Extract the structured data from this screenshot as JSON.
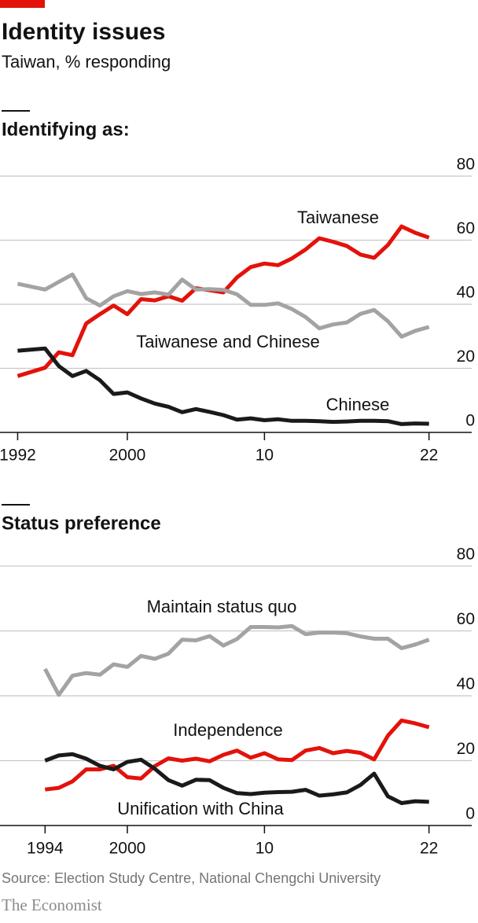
{
  "header": {
    "title": "Identity issues",
    "subtitle": "Taiwan, % responding"
  },
  "footer": {
    "source": "Source: Election Study Centre, National Chengchi University",
    "brand": "The Economist"
  },
  "chart_data": [
    {
      "type": "line",
      "title": "Identifying as:",
      "x": [
        1992,
        1994,
        1995,
        1996,
        1997,
        1998,
        1999,
        2000,
        2001,
        2002,
        2003,
        2004,
        2005,
        2006,
        2007,
        2008,
        2009,
        2010,
        2011,
        2012,
        2013,
        2014,
        2015,
        2016,
        2017,
        2018,
        2019,
        2020,
        2021,
        2022
      ],
      "series": [
        {
          "name": "Taiwanese",
          "color": "#e3120b",
          "values": [
            17.6,
            20.2,
            25.0,
            24.1,
            34.0,
            36.9,
            39.6,
            36.9,
            41.6,
            41.2,
            42.5,
            41.1,
            45.0,
            44.4,
            43.7,
            48.4,
            51.6,
            52.7,
            52.2,
            54.3,
            57.1,
            60.6,
            59.5,
            58.2,
            55.5,
            54.5,
            58.5,
            64.3,
            62.3,
            60.8
          ]
        },
        {
          "name": "Taiwanese and Chinese",
          "color": "#a3a3a3",
          "values": [
            46.4,
            44.6,
            47.0,
            49.3,
            41.9,
            39.6,
            42.5,
            44.1,
            43.2,
            43.7,
            43.0,
            47.7,
            44.6,
            44.7,
            44.5,
            43.1,
            39.8,
            39.8,
            40.3,
            38.5,
            36.0,
            32.5,
            33.7,
            34.3,
            37.0,
            38.2,
            34.7,
            29.9,
            31.7,
            32.9
          ]
        },
        {
          "name": "Chinese",
          "color": "#1a1a1a",
          "values": [
            25.5,
            26.2,
            20.7,
            17.6,
            19.2,
            16.3,
            12.0,
            12.5,
            10.6,
            9.0,
            8.0,
            6.3,
            7.3,
            6.4,
            5.4,
            4.0,
            4.4,
            3.8,
            4.1,
            3.6,
            3.6,
            3.5,
            3.3,
            3.4,
            3.6,
            3.6,
            3.5,
            2.6,
            2.8,
            2.7
          ]
        }
      ],
      "xlim": [
        1991,
        2025
      ],
      "xticks": [
        1992,
        2000,
        {
          "value": 2010,
          "label": "10"
        },
        {
          "value": 2022,
          "label": "22"
        }
      ],
      "ylim": [
        0,
        80
      ],
      "yticks": [
        0,
        20,
        40,
        60,
        80
      ],
      "grid": true
    },
    {
      "type": "line",
      "title": "Status preference",
      "x": [
        1994,
        1995,
        1996,
        1997,
        1998,
        1999,
        2000,
        2001,
        2002,
        2003,
        2004,
        2005,
        2006,
        2007,
        2008,
        2009,
        2010,
        2011,
        2012,
        2013,
        2014,
        2015,
        2016,
        2017,
        2018,
        2019,
        2020,
        2021,
        2022
      ],
      "series": [
        {
          "name": "Maintain status quo",
          "color": "#a3a3a3",
          "values": [
            48.3,
            40.3,
            46.2,
            47.0,
            46.5,
            49.7,
            48.9,
            52.3,
            51.4,
            53.0,
            57.3,
            57.1,
            58.4,
            55.5,
            57.5,
            61.2,
            61.2,
            61.1,
            61.5,
            59.0,
            59.5,
            59.5,
            59.3,
            58.3,
            57.6,
            57.6,
            54.7,
            55.8,
            57.3
          ]
        },
        {
          "name": "Independence",
          "color": "#e3120b",
          "values": [
            11.1,
            11.6,
            13.6,
            17.3,
            17.3,
            18.4,
            14.9,
            14.5,
            18.3,
            20.7,
            20.0,
            20.6,
            19.8,
            21.8,
            23.1,
            20.9,
            22.3,
            20.4,
            20.2,
            23.1,
            23.9,
            22.3,
            23.0,
            22.4,
            20.4,
            27.7,
            32.4,
            31.5,
            30.3
          ]
        },
        {
          "name": "Unification with China",
          "color": "#1a1a1a",
          "values": [
            20.0,
            21.6,
            22.0,
            20.6,
            18.4,
            17.3,
            19.6,
            20.3,
            17.5,
            14.0,
            12.3,
            14.1,
            14.0,
            11.6,
            10.0,
            9.7,
            10.1,
            10.3,
            10.4,
            11.0,
            9.2,
            9.6,
            10.2,
            12.5,
            16.0,
            9.0,
            6.9,
            7.5,
            7.3
          ]
        }
      ],
      "xlim": [
        1991,
        2025
      ],
      "xticks": [
        1994,
        2000,
        {
          "value": 2010,
          "label": "10"
        },
        {
          "value": 2022,
          "label": "22"
        }
      ],
      "ylim": [
        0,
        80
      ],
      "yticks": [
        0,
        20,
        40,
        60,
        80
      ],
      "grid": true
    }
  ]
}
